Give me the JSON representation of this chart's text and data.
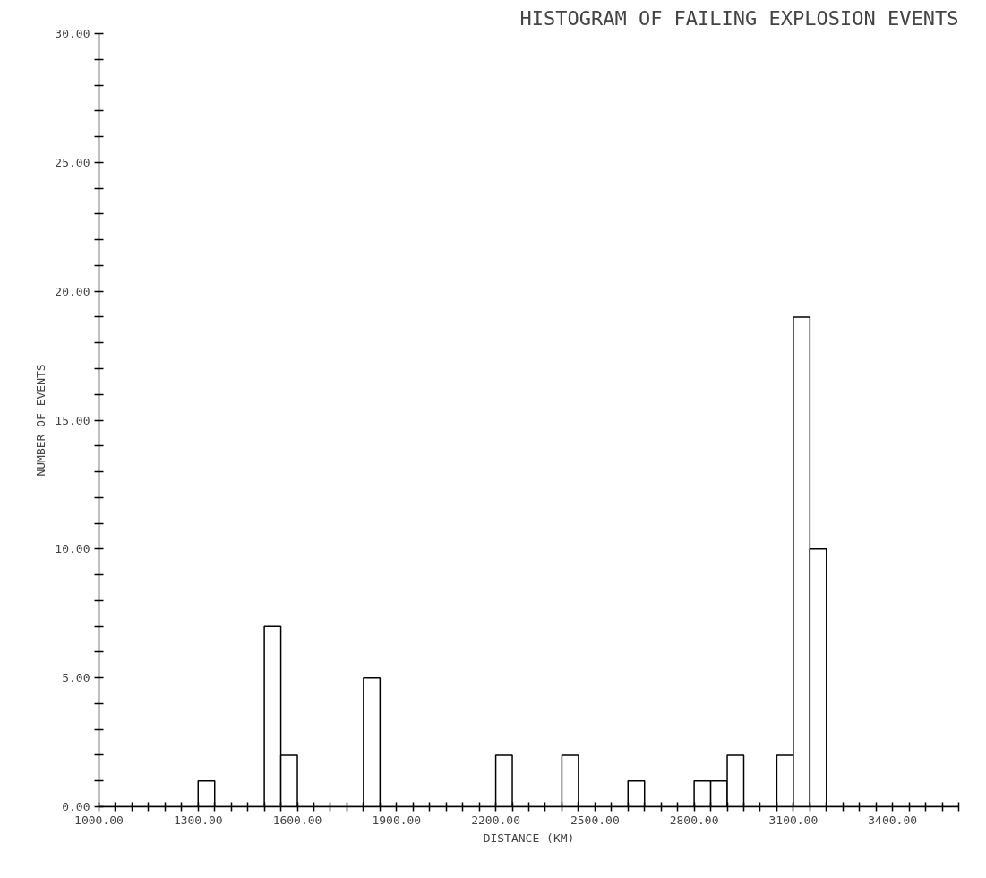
{
  "chart_data": {
    "type": "histogram",
    "title": "HISTOGRAM OF FAILING EXPLOSION EVENTS",
    "xlabel": "DISTANCE (KM)",
    "ylabel": "NUMBER OF EVENTS",
    "bins": [
      1000,
      1050,
      1100,
      1150,
      1200,
      1250,
      1300,
      1350,
      1400,
      1450,
      1500,
      1550,
      1600,
      1650,
      1700,
      1750,
      1800,
      1850,
      1900,
      1950,
      2000,
      2050,
      2100,
      2150,
      2200,
      2250,
      2300,
      2350,
      2400,
      2450,
      2500,
      2550,
      2600,
      2650,
      2700,
      2750,
      2800,
      2850,
      2900,
      2950,
      3000,
      3050,
      3100,
      3150,
      3200,
      3250,
      3300,
      3350,
      3400,
      3450,
      3500,
      3550,
      3600
    ],
    "values": [
      0,
      0,
      0,
      0,
      0,
      0,
      1,
      0,
      0,
      0,
      7,
      2,
      0,
      0,
      0,
      0,
      5,
      0,
      0,
      0,
      0,
      0,
      0,
      0,
      2,
      0,
      0,
      0,
      2,
      0,
      0,
      0,
      1,
      0,
      0,
      0,
      1,
      1,
      2,
      0,
      0,
      2,
      19,
      10,
      0,
      0,
      0,
      0,
      0,
      0,
      0,
      0
    ],
    "color": "#ffffff",
    "xlim": [
      1000,
      3600
    ],
    "ylim": [
      0,
      30
    ],
    "xticks": [
      {
        "value": 1000,
        "label": "1000.00"
      },
      {
        "value": 1050,
        "label": null
      },
      {
        "value": 1100,
        "label": null
      },
      {
        "value": 1150,
        "label": null
      },
      {
        "value": 1200,
        "label": null
      },
      {
        "value": 1250,
        "label": null
      },
      {
        "value": 1300,
        "label": "1300.00"
      },
      {
        "value": 1350,
        "label": null
      },
      {
        "value": 1400,
        "label": null
      },
      {
        "value": 1450,
        "label": null
      },
      {
        "value": 1500,
        "label": null
      },
      {
        "value": 1550,
        "label": null
      },
      {
        "value": 1600,
        "label": "1600.00"
      },
      {
        "value": 1650,
        "label": null
      },
      {
        "value": 1700,
        "label": null
      },
      {
        "value": 1750,
        "label": null
      },
      {
        "value": 1800,
        "label": null
      },
      {
        "value": 1850,
        "label": null
      },
      {
        "value": 1900,
        "label": "1900.00"
      },
      {
        "value": 1950,
        "label": null
      },
      {
        "value": 2000,
        "label": null
      },
      {
        "value": 2050,
        "label": null
      },
      {
        "value": 2100,
        "label": null
      },
      {
        "value": 2150,
        "label": null
      },
      {
        "value": 2200,
        "label": "2200.00"
      },
      {
        "value": 2250,
        "label": null
      },
      {
        "value": 2300,
        "label": null
      },
      {
        "value": 2350,
        "label": null
      },
      {
        "value": 2400,
        "label": null
      },
      {
        "value": 2450,
        "label": null
      },
      {
        "value": 2500,
        "label": "2500.00"
      },
      {
        "value": 2550,
        "label": null
      },
      {
        "value": 2600,
        "label": null
      },
      {
        "value": 2650,
        "label": null
      },
      {
        "value": 2700,
        "label": null
      },
      {
        "value": 2750,
        "label": null
      },
      {
        "value": 2800,
        "label": "2800.00"
      },
      {
        "value": 2850,
        "label": null
      },
      {
        "value": 2900,
        "label": null
      },
      {
        "value": 2950,
        "label": null
      },
      {
        "value": 3000,
        "label": null
      },
      {
        "value": 3050,
        "label": null
      },
      {
        "value": 3100,
        "label": "3100.00"
      },
      {
        "value": 3150,
        "label": null
      },
      {
        "value": 3200,
        "label": null
      },
      {
        "value": 3250,
        "label": null
      },
      {
        "value": 3300,
        "label": null
      },
      {
        "value": 3350,
        "label": null
      },
      {
        "value": 3400,
        "label": "3400.00"
      },
      {
        "value": 3450,
        "label": null
      },
      {
        "value": 3500,
        "label": null
      },
      {
        "value": 3550,
        "label": null
      },
      {
        "value": 3600,
        "label": null
      }
    ],
    "yticks": [
      {
        "value": 0,
        "label": "0.00"
      },
      {
        "value": 1,
        "label": null
      },
      {
        "value": 2,
        "label": null
      },
      {
        "value": 3,
        "label": null
      },
      {
        "value": 4,
        "label": null
      },
      {
        "value": 5,
        "label": "5.00"
      },
      {
        "value": 6,
        "label": null
      },
      {
        "value": 7,
        "label": null
      },
      {
        "value": 8,
        "label": null
      },
      {
        "value": 9,
        "label": null
      },
      {
        "value": 10,
        "label": "10.00"
      },
      {
        "value": 11,
        "label": null
      },
      {
        "value": 12,
        "label": null
      },
      {
        "value": 13,
        "label": null
      },
      {
        "value": 14,
        "label": null
      },
      {
        "value": 15,
        "label": "15.00"
      },
      {
        "value": 16,
        "label": null
      },
      {
        "value": 17,
        "label": null
      },
      {
        "value": 18,
        "label": null
      },
      {
        "value": 19,
        "label": null
      },
      {
        "value": 20,
        "label": "20.00"
      },
      {
        "value": 21,
        "label": null
      },
      {
        "value": 22,
        "label": null
      },
      {
        "value": 23,
        "label": null
      },
      {
        "value": 24,
        "label": null
      },
      {
        "value": 25,
        "label": "25.00"
      },
      {
        "value": 26,
        "label": null
      },
      {
        "value": 27,
        "label": null
      },
      {
        "value": 28,
        "label": null
      },
      {
        "value": 29,
        "label": null
      },
      {
        "value": 30,
        "label": "30.00"
      }
    ],
    "line_style": "solid"
  }
}
